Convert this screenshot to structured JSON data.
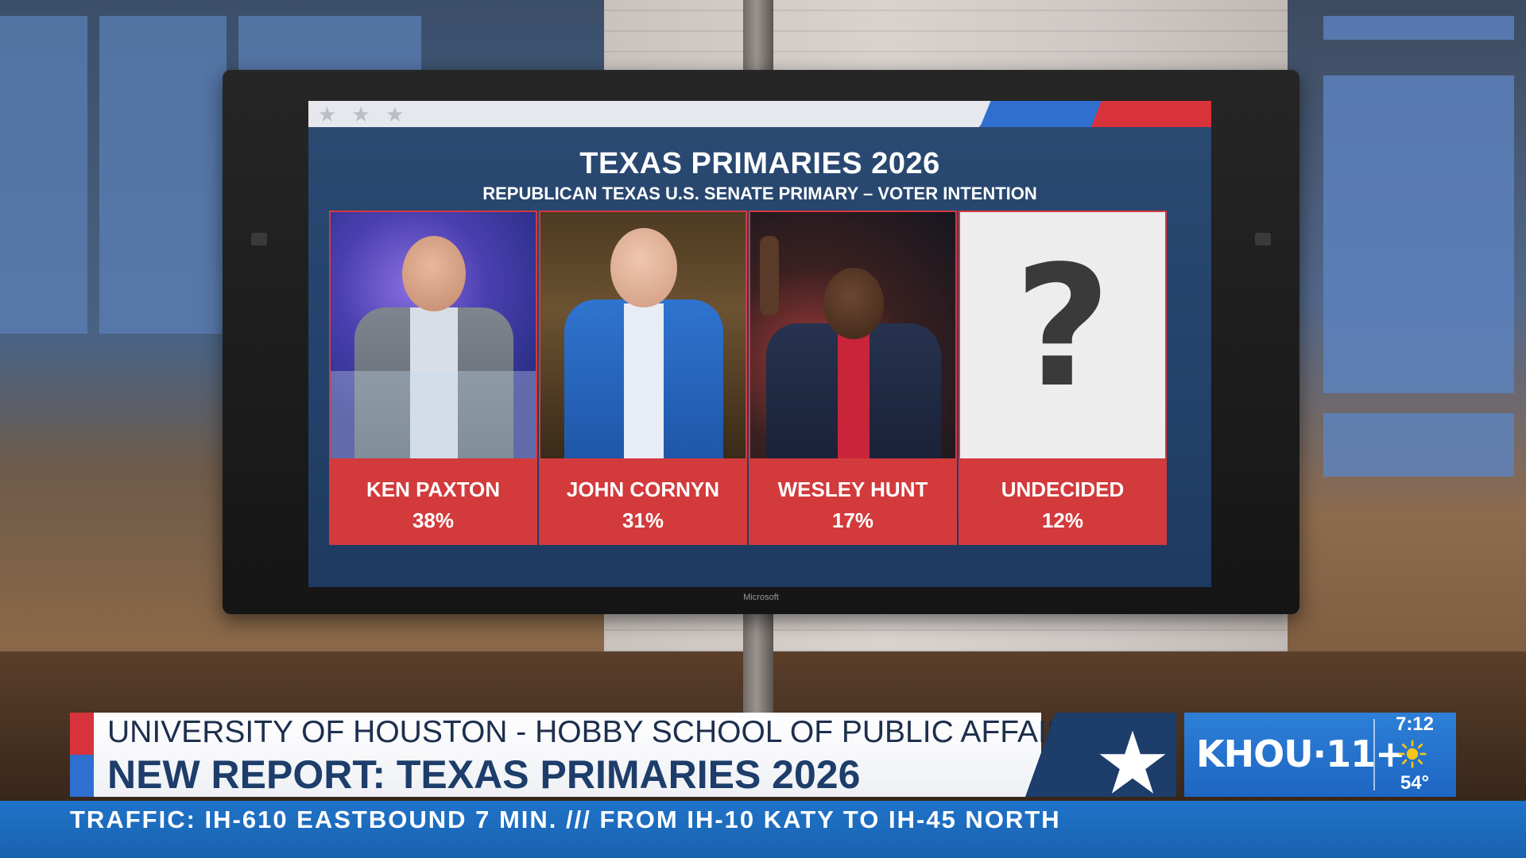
{
  "screen": {
    "title": "TEXAS PRIMARIES 2026",
    "subtitle": "REPUBLICAN TEXAS U.S. SENATE PRIMARY – VOTER INTENTION",
    "monitor_brand": "Microsoft",
    "stars": "★ ★ ★",
    "candidates": [
      {
        "name": "KEN PAXTON",
        "percent": "38%"
      },
      {
        "name": "JOHN CORNYN",
        "percent": "31%"
      },
      {
        "name": "WESLEY HUNT",
        "percent": "17%"
      },
      {
        "name": "UNDECIDED",
        "percent": "12%"
      }
    ],
    "undecided_symbol": "?"
  },
  "lower_third": {
    "line1": "UNIVERSITY OF HOUSTON - HOBBY SCHOOL OF PUBLIC AFFAIRS",
    "line2": "NEW REPORT: TEXAS PRIMARIES 2026"
  },
  "station": {
    "logo": "KHOU·11+",
    "time": "7:12",
    "temperature": "54°",
    "weather_icon": "sun-icon"
  },
  "ticker": {
    "text": "TRAFFIC: IH-610 EASTBOUND 7 MIN.  ///  FROM IH-10 KATY TO IH-45 NORTH"
  },
  "colors": {
    "screen_bg": "#23416a",
    "card_label_red": "#d23a3c",
    "lower_third_navy": "#1d3d6a",
    "station_blue": "#1e66c2",
    "ticker_blue": "#1a62ae"
  }
}
